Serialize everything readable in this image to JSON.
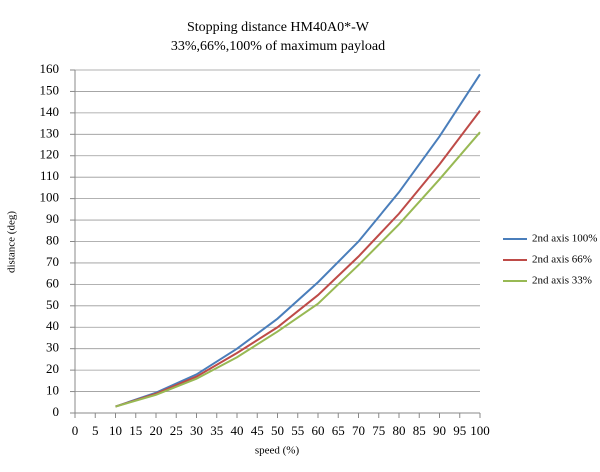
{
  "chart_data": {
    "type": "line",
    "title": "Stopping distance HM40A0*-W",
    "subtitle": "33%,66%,100% of maximum payload",
    "x_label": "speed (%)",
    "y_label": "distance (deg)",
    "x": [
      10,
      20,
      30,
      40,
      50,
      60,
      70,
      80,
      90,
      100
    ],
    "series": [
      {
        "name": "2nd axis 100%",
        "color": "#4a7ebb",
        "values": [
          3,
          9.5,
          18,
          30,
          44,
          61,
          80,
          103,
          129,
          158
        ]
      },
      {
        "name": "2nd axis 66%",
        "color": "#be4b48",
        "values": [
          3,
          9,
          17,
          28,
          40,
          55,
          73,
          93,
          116,
          141
        ]
      },
      {
        "name": "2nd axis 33%",
        "color": "#98b954",
        "values": [
          3,
          8.5,
          16,
          26,
          38,
          51,
          69,
          88,
          109,
          131
        ]
      }
    ],
    "xlim": [
      0,
      100
    ],
    "xticks": [
      0,
      5,
      10,
      15,
      20,
      25,
      30,
      35,
      40,
      45,
      50,
      55,
      60,
      65,
      70,
      75,
      80,
      85,
      90,
      95,
      100
    ],
    "ylim": [
      0,
      160
    ],
    "yticks": [
      0,
      10,
      20,
      30,
      40,
      50,
      60,
      70,
      80,
      90,
      100,
      110,
      120,
      130,
      140,
      150,
      160
    ],
    "grid": true,
    "legend": "right"
  }
}
